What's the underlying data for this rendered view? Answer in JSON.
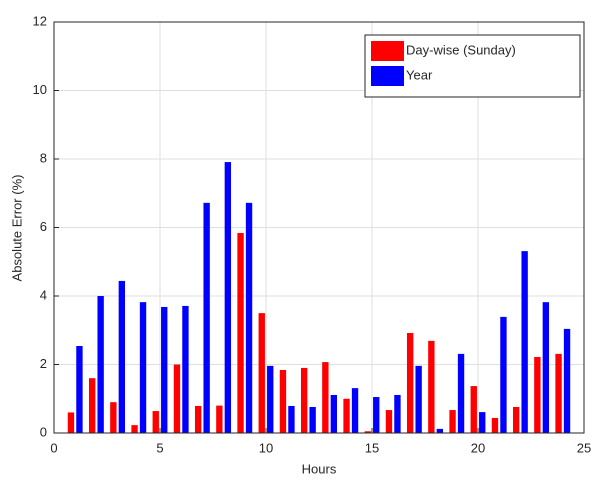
{
  "chart_data": {
    "type": "bar",
    "xlabel": "Hours",
    "ylabel": "Absolute Error (%)",
    "x": [
      1,
      2,
      3,
      4,
      5,
      6,
      7,
      8,
      9,
      10,
      11,
      12,
      13,
      14,
      15,
      16,
      17,
      18,
      19,
      20,
      21,
      22,
      23,
      24
    ],
    "series": [
      {
        "name": "Day-wise (Sunday)",
        "color": "#ff0000",
        "values": [
          0.6,
          1.6,
          0.9,
          0.23,
          0.64,
          2.0,
          0.79,
          0.8,
          5.84,
          3.5,
          1.84,
          1.9,
          2.07,
          1.0,
          0.05,
          0.67,
          2.92,
          2.69,
          0.67,
          1.37,
          0.44,
          0.76,
          2.22,
          2.31
        ]
      },
      {
        "name": "Year",
        "color": "#0000ff",
        "values": [
          2.54,
          4.0,
          4.44,
          3.82,
          3.68,
          3.71,
          6.72,
          7.91,
          6.72,
          1.96,
          0.79,
          0.76,
          1.11,
          1.31,
          1.05,
          1.11,
          1.96,
          0.12,
          2.31,
          0.61,
          3.39,
          5.31,
          3.82,
          3.04
        ]
      }
    ],
    "xlim": [
      0,
      25
    ],
    "xticks": [
      0,
      5,
      10,
      15,
      20,
      25
    ],
    "ylim": [
      0,
      12
    ],
    "yticks": [
      0,
      2,
      4,
      6,
      8,
      10,
      12
    ],
    "grid": true,
    "legend": "northeast"
  }
}
